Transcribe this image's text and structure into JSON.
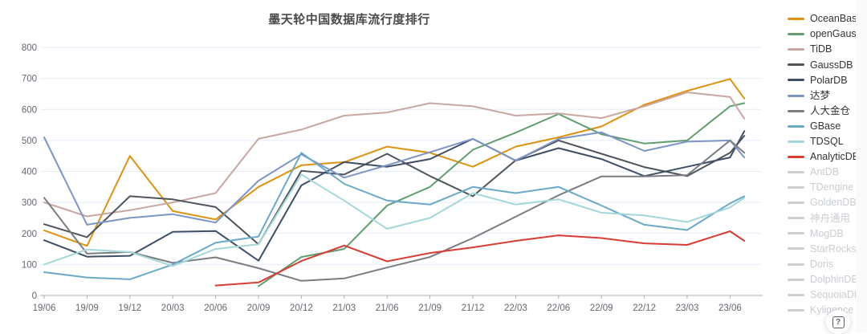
{
  "page": {
    "background": "#ffffff"
  },
  "help_button": {
    "glyph": "?"
  },
  "colors": {
    "grid": "#e2ecf7",
    "axis": "#a9adb5",
    "tick_text": "#666670",
    "inactive_legend": "#cbcfd4"
  },
  "chart_data": {
    "type": "line",
    "title": "墨天轮中国数据库流行度排行",
    "xlabel": "",
    "ylabel": "",
    "ylim": [
      0,
      800
    ],
    "y_step": 100,
    "grid": true,
    "legend_position": "right",
    "x_tick_labels": [
      "19/06",
      "19/09",
      "19/12",
      "20/03",
      "20/06",
      "20/09",
      "20/12",
      "21/03",
      "21/06",
      "21/09",
      "21/12",
      "22/03",
      "22/06",
      "22/09",
      "22/12",
      "23/03",
      "23/06"
    ],
    "x_tick_months": [
      0,
      3,
      6,
      9,
      12,
      15,
      18,
      21,
      24,
      27,
      30,
      33,
      36,
      39,
      42,
      45,
      48
    ],
    "months_total": 49,
    "point_months": [
      0,
      3,
      6,
      9,
      12,
      15,
      18,
      21,
      24,
      27,
      30,
      33,
      36,
      39,
      42,
      45,
      48,
      49
    ],
    "point_labels": [
      "19/06",
      "19/09",
      "19/12",
      "20/03",
      "20/06",
      "20/09",
      "20/12",
      "21/03",
      "21/06",
      "21/09",
      "21/12",
      "22/03",
      "22/06",
      "22/09",
      "22/12",
      "23/03",
      "23/06",
      "23/07"
    ],
    "series": [
      {
        "name": "OceanBase",
        "color": "#e0920e",
        "active": true,
        "values": [
          210,
          160,
          450,
          272,
          245,
          350,
          420,
          430,
          480,
          460,
          415,
          480,
          510,
          545,
          615,
          660,
          698,
          635
        ]
      },
      {
        "name": "openGauss",
        "color": "#5f9e6f",
        "active": true,
        "values": [
          null,
          null,
          null,
          null,
          null,
          30,
          124,
          150,
          290,
          350,
          470,
          525,
          585,
          520,
          490,
          500,
          610,
          620
        ]
      },
      {
        "name": "TiDB",
        "color": "#c8a7a2",
        "active": true,
        "values": [
          300,
          255,
          275,
          300,
          330,
          505,
          535,
          580,
          590,
          620,
          610,
          580,
          587,
          572,
          610,
          655,
          640,
          570
        ]
      },
      {
        "name": "GaussDB",
        "color": "#4e545b",
        "active": true,
        "values": [
          230,
          188,
          320,
          310,
          285,
          165,
          402,
          390,
          457,
          385,
          320,
          436,
          500,
          457,
          414,
          385,
          460,
          515
        ]
      },
      {
        "name": "PolarDB",
        "color": "#3d4f66",
        "active": true,
        "values": [
          178,
          125,
          128,
          205,
          208,
          112,
          355,
          430,
          415,
          440,
          505,
          435,
          475,
          440,
          385,
          415,
          445,
          530
        ]
      },
      {
        "name": "达梦",
        "color": "#7b96c6",
        "active": true,
        "values": [
          510,
          228,
          250,
          262,
          235,
          370,
          455,
          380,
          420,
          462,
          505,
          435,
          505,
          526,
          466,
          496,
          500,
          445
        ]
      },
      {
        "name": "人大金仓",
        "color": "#7a7d81",
        "active": true,
        "values": [
          315,
          135,
          140,
          105,
          123,
          88,
          47,
          55,
          90,
          124,
          185,
          254,
          323,
          384,
          384,
          388,
          500,
          460
        ]
      },
      {
        "name": "GBase",
        "color": "#6aa9c9",
        "active": true,
        "values": [
          75,
          58,
          52,
          100,
          170,
          190,
          460,
          360,
          306,
          293,
          350,
          330,
          350,
          290,
          228,
          211,
          297,
          320
        ]
      },
      {
        "name": "TDSQL",
        "color": "#a3d8db",
        "active": true,
        "values": [
          100,
          148,
          140,
          95,
          150,
          165,
          390,
          306,
          215,
          250,
          330,
          293,
          310,
          267,
          258,
          237,
          284,
          315
        ]
      },
      {
        "name": "AnalyticDB",
        "color": "#d83c32",
        "active": true,
        "values": [
          null,
          null,
          null,
          null,
          32,
          42,
          111,
          161,
          110,
          137,
          155,
          176,
          194,
          185,
          168,
          163,
          207,
          176
        ]
      },
      {
        "name": "AntDB",
        "color": "#cbcfd4",
        "active": false,
        "values": null
      },
      {
        "name": "TDengine",
        "color": "#cbcfd4",
        "active": false,
        "values": null
      },
      {
        "name": "GoldenDB",
        "color": "#cbcfd4",
        "active": false,
        "values": null
      },
      {
        "name": "神舟通用",
        "color": "#cbcfd4",
        "active": false,
        "values": null
      },
      {
        "name": "MogDB",
        "color": "#cbcfd4",
        "active": false,
        "values": null
      },
      {
        "name": "StarRocks",
        "color": "#cbcfd4",
        "active": false,
        "values": null
      },
      {
        "name": "Doris",
        "color": "#cbcfd4",
        "active": false,
        "values": null
      },
      {
        "name": "DolphinDB",
        "color": "#cbcfd4",
        "active": false,
        "values": null
      },
      {
        "name": "SequoiaDB",
        "color": "#cbcfd4",
        "active": false,
        "values": null
      },
      {
        "name": "Kyligence",
        "color": "#cbcfd4",
        "active": false,
        "values": null
      }
    ]
  }
}
